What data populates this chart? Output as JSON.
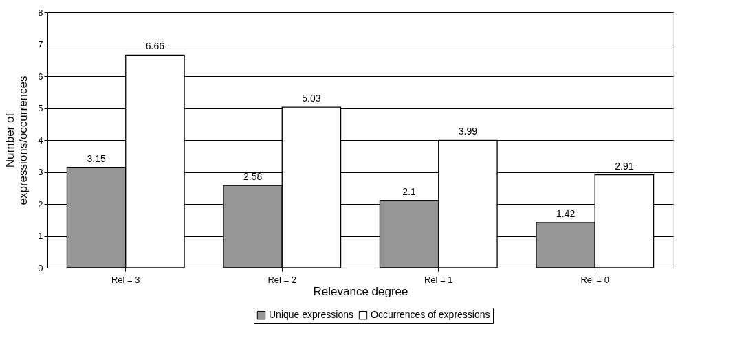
{
  "chart_data": {
    "type": "bar",
    "xlabel": "Relevance degree",
    "ylabel": "Number of\nexpressions/occurrences",
    "categories": [
      "Rel = 3",
      "Rel = 2",
      "Rel = 1",
      "Rel = 0"
    ],
    "series": [
      {
        "name": "Unique expressions",
        "color": "#969696",
        "values": [
          3.15,
          2.58,
          2.1,
          1.42
        ]
      },
      {
        "name": "Occurrences of expressions",
        "color": "#ffffff",
        "values": [
          6.66,
          5.03,
          3.99,
          2.91
        ]
      }
    ],
    "ylim": [
      0,
      8
    ],
    "yticks": [
      0,
      1,
      2,
      3,
      4,
      5,
      6,
      7,
      8
    ],
    "grid": "y",
    "legend": "bottom",
    "data_labels": true
  }
}
